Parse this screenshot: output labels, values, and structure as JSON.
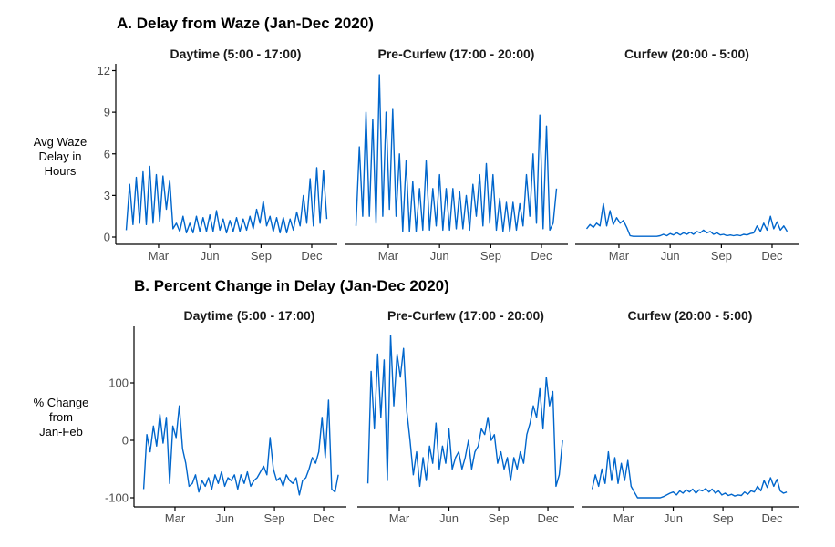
{
  "sections": [
    {
      "title": "A. Delay from Waze (Jan-Dec 2020)",
      "ylabel": [
        "Avg Waze",
        "Delay in",
        "Hours"
      ]
    },
    {
      "title": "B. Percent Change in Delay (Jan-Dec 2020)",
      "ylabel": [
        "% Change",
        "from",
        "Jan-Feb"
      ]
    }
  ],
  "chart_data": {
    "type": "line",
    "color": "#0066cc",
    "xlabel": "",
    "x_ticks": [
      {
        "label": "Mar",
        "date": "2020-03-01"
      },
      {
        "label": "Jun",
        "date": "2020-06-01"
      },
      {
        "label": "Sep",
        "date": "2020-09-01"
      },
      {
        "label": "Dec",
        "date": "2020-12-01"
      }
    ],
    "xlim": [
      "2020-01-01",
      "2020-12-31"
    ],
    "x": [
      "2020-01-03",
      "2020-01-09",
      "2020-01-15",
      "2020-01-21",
      "2020-01-27",
      "2020-02-02",
      "2020-02-08",
      "2020-02-14",
      "2020-02-20",
      "2020-02-26",
      "2020-03-03",
      "2020-03-09",
      "2020-03-15",
      "2020-03-21",
      "2020-03-27",
      "2020-04-02",
      "2020-04-08",
      "2020-04-14",
      "2020-04-20",
      "2020-04-26",
      "2020-05-02",
      "2020-05-08",
      "2020-05-14",
      "2020-05-20",
      "2020-05-26",
      "2020-06-01",
      "2020-06-07",
      "2020-06-13",
      "2020-06-19",
      "2020-06-25",
      "2020-07-01",
      "2020-07-07",
      "2020-07-13",
      "2020-07-19",
      "2020-07-25",
      "2020-07-31",
      "2020-08-06",
      "2020-08-12",
      "2020-08-18",
      "2020-08-24",
      "2020-08-30",
      "2020-09-05",
      "2020-09-11",
      "2020-09-17",
      "2020-09-23",
      "2020-09-29",
      "2020-10-05",
      "2020-10-11",
      "2020-10-17",
      "2020-10-23",
      "2020-10-29",
      "2020-11-04",
      "2020-11-10",
      "2020-11-16",
      "2020-11-22",
      "2020-11-28",
      "2020-12-04",
      "2020-12-10",
      "2020-12-16",
      "2020-12-22",
      "2020-12-28"
    ],
    "panels": [
      {
        "section": 0,
        "facet": "Daytime (5:00 - 17:00)",
        "ylim": [
          0,
          12
        ],
        "yticks": [
          0,
          3,
          6,
          9,
          12
        ],
        "values": [
          0.5,
          3.8,
          0.9,
          4.3,
          1.0,
          4.7,
          0.9,
          5.1,
          1.0,
          4.5,
          1.1,
          4.4,
          2.0,
          4.1,
          0.6,
          1.0,
          0.4,
          1.5,
          0.3,
          1.0,
          0.3,
          1.5,
          0.4,
          1.4,
          0.4,
          1.6,
          0.4,
          1.9,
          0.5,
          1.3,
          0.3,
          1.2,
          0.4,
          1.4,
          0.4,
          1.3,
          0.5,
          1.5,
          0.6,
          2.0,
          1.0,
          2.6,
          0.8,
          1.5,
          0.4,
          1.4,
          0.3,
          1.4,
          0.3,
          1.3,
          0.5,
          1.8,
          0.8,
          3.0,
          1.0,
          4.2,
          0.8,
          5.0,
          1.0,
          4.8,
          1.3
        ]
      },
      {
        "section": 0,
        "facet": "Pre-Curfew (17:00 - 20:00)",
        "ylim": [
          0,
          12
        ],
        "yticks": [],
        "values": [
          0.8,
          6.5,
          1.5,
          9.0,
          1.5,
          8.5,
          1.0,
          11.7,
          1.5,
          9.0,
          2.0,
          9.2,
          1.5,
          6.0,
          0.4,
          5.5,
          0.4,
          4.0,
          0.4,
          3.5,
          0.5,
          5.5,
          0.5,
          3.5,
          0.8,
          4.5,
          0.5,
          3.5,
          0.5,
          3.5,
          0.6,
          3.3,
          0.6,
          3.0,
          0.5,
          3.8,
          1.5,
          4.5,
          0.8,
          5.3,
          1.0,
          4.5,
          0.5,
          2.8,
          0.4,
          2.5,
          0.4,
          2.5,
          0.5,
          2.4,
          0.8,
          4.5,
          1.5,
          6.0,
          1.0,
          8.8,
          0.6,
          8.0,
          0.5,
          1.0,
          3.5
        ]
      },
      {
        "section": 0,
        "facet": "Curfew (20:00 - 5:00)",
        "ylim": [
          0,
          12
        ],
        "yticks": [],
        "values": [
          0.6,
          0.9,
          0.7,
          1.0,
          0.8,
          2.4,
          0.8,
          1.9,
          0.9,
          1.4,
          1.0,
          1.2,
          0.7,
          0.1,
          0.05,
          0.05,
          0.05,
          0.05,
          0.05,
          0.05,
          0.05,
          0.05,
          0.1,
          0.2,
          0.1,
          0.25,
          0.15,
          0.3,
          0.15,
          0.3,
          0.2,
          0.35,
          0.2,
          0.4,
          0.3,
          0.5,
          0.3,
          0.4,
          0.2,
          0.3,
          0.15,
          0.2,
          0.1,
          0.15,
          0.1,
          0.15,
          0.1,
          0.2,
          0.15,
          0.25,
          0.3,
          0.8,
          0.4,
          1.0,
          0.5,
          1.5,
          0.6,
          1.1,
          0.5,
          0.8,
          0.4
        ]
      },
      {
        "section": 1,
        "facet": "Daytime (5:00 - 17:00)",
        "ylim": [
          -110,
          190
        ],
        "yticks": [
          -100,
          0,
          100
        ],
        "values": [
          -85,
          10,
          -20,
          25,
          -10,
          45,
          -5,
          40,
          -75,
          25,
          5,
          60,
          -15,
          -40,
          -80,
          -75,
          -60,
          -90,
          -70,
          -80,
          -65,
          -85,
          -60,
          -75,
          -55,
          -80,
          -65,
          -70,
          -60,
          -85,
          -60,
          -75,
          -55,
          -80,
          -70,
          -65,
          -55,
          -45,
          -60,
          5,
          -50,
          -70,
          -65,
          -80,
          -60,
          -70,
          -75,
          -65,
          -95,
          -70,
          -65,
          -50,
          -30,
          -40,
          -20,
          40,
          -30,
          70,
          -85,
          -90,
          -60
        ]
      },
      {
        "section": 1,
        "facet": "Pre-Curfew (17:00 - 20:00)",
        "ylim": [
          -110,
          190
        ],
        "yticks": [],
        "values": [
          -75,
          120,
          20,
          150,
          40,
          140,
          -70,
          183,
          60,
          150,
          110,
          160,
          50,
          0,
          -60,
          -20,
          -80,
          -30,
          -70,
          -10,
          -40,
          30,
          -50,
          -10,
          -40,
          20,
          -50,
          -30,
          -20,
          -50,
          -30,
          0,
          -50,
          -20,
          -10,
          20,
          10,
          40,
          0,
          10,
          -40,
          -20,
          -50,
          -30,
          -70,
          -30,
          -50,
          -20,
          -40,
          10,
          30,
          60,
          40,
          90,
          20,
          110,
          60,
          85,
          -80,
          -60,
          0
        ]
      },
      {
        "section": 1,
        "facet": "Curfew (20:00 - 5:00)",
        "ylim": [
          -110,
          190
        ],
        "yticks": [],
        "values": [
          -85,
          -60,
          -80,
          -50,
          -75,
          -20,
          -70,
          -30,
          -75,
          -40,
          -70,
          -35,
          -80,
          -90,
          -100,
          -100,
          -100,
          -100,
          -100,
          -100,
          -100,
          -100,
          -98,
          -95,
          -92,
          -90,
          -95,
          -88,
          -92,
          -86,
          -90,
          -85,
          -92,
          -86,
          -88,
          -84,
          -90,
          -85,
          -92,
          -88,
          -95,
          -92,
          -96,
          -94,
          -97,
          -95,
          -96,
          -90,
          -94,
          -88,
          -90,
          -80,
          -88,
          -70,
          -82,
          -65,
          -80,
          -68,
          -88,
          -92,
          -90
        ]
      }
    ]
  }
}
